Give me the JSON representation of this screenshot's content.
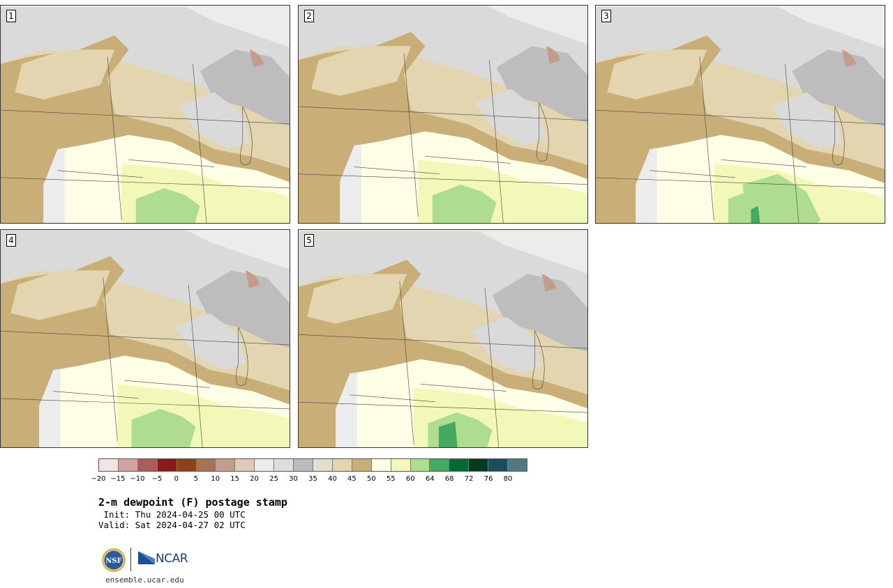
{
  "panels": [
    {
      "label": "1"
    },
    {
      "label": "2"
    },
    {
      "label": "3"
    },
    {
      "label": "4"
    },
    {
      "label": "5"
    }
  ],
  "colorbar": {
    "colors": [
      "#f3e4e4",
      "#d3a2a2",
      "#a85c5c",
      "#8c1a1a",
      "#8a4416",
      "#a87355",
      "#c49d8a",
      "#e0c9b8",
      "#ebebeb",
      "#dedede",
      "#bcbcbc",
      "#e1e0d0",
      "#e3d5b0",
      "#c9ae78",
      "#fefee6",
      "#f2f8b8",
      "#aedd90",
      "#45aa60",
      "#056a36",
      "#073a20",
      "#1e4c5c",
      "#4f7a7e"
    ],
    "ticks": [
      "−20",
      "−15",
      "−10",
      "−5",
      "0",
      "5",
      "10",
      "15",
      "20",
      "25",
      "30",
      "35",
      "40",
      "45",
      "50",
      "55",
      "60",
      "64",
      "68",
      "72",
      "76",
      "80"
    ]
  },
  "title": "2-m dewpoint (F) postage stamp",
  "init_line": " Init: Thu 2024-04-25 00 UTC",
  "valid_line": "Valid: Sat 2024-04-27 02 UTC",
  "logos": {
    "nsf_text": "NSF",
    "ncar_text": "NCAR"
  },
  "footer_url": "ensemble.ucar.edu"
}
